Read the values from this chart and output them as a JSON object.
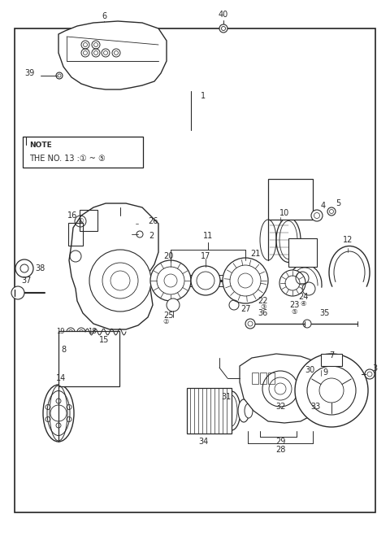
{
  "bg_color": "#ffffff",
  "lc": "#2a2a2a",
  "fig_width": 4.8,
  "fig_height": 6.59,
  "dpi": 100,
  "note_line1": "NOTE",
  "note_line2": "THE NO. 13 :① ~ ⑤"
}
